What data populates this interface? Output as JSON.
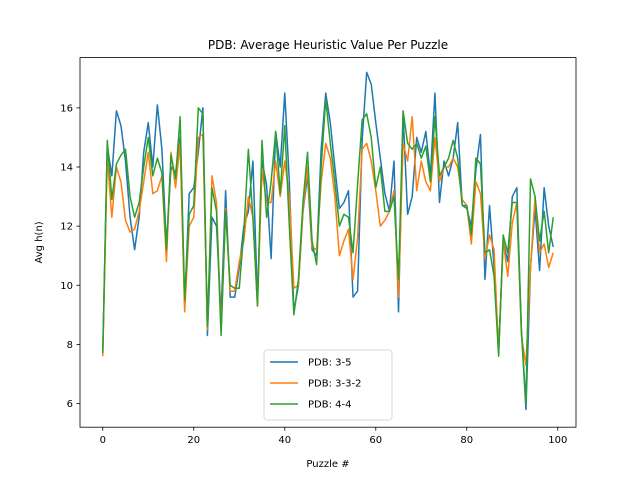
{
  "chart_data": {
    "type": "line",
    "title": "PDB: Average Heuristic Value Per Puzzle",
    "xlabel": "Puzzle #",
    "ylabel": "Avg h(n)",
    "xlim": [
      -5,
      104
    ],
    "ylim": [
      5.2,
      17.7
    ],
    "xticks": [
      0,
      20,
      40,
      60,
      80,
      100
    ],
    "yticks": [
      6,
      8,
      10,
      12,
      14,
      16
    ],
    "grid": false,
    "legend_position": "lower-center",
    "series": [
      {
        "name": "PDB: 3-5",
        "color": "#1f77b4",
        "values": [
          7.7,
          14.7,
          13.7,
          15.9,
          15.4,
          14.2,
          12.3,
          11.2,
          12.3,
          14.5,
          15.5,
          14.0,
          16.1,
          14.6,
          11.3,
          14.0,
          13.8,
          15.0,
          9.3,
          13.1,
          13.3,
          14.5,
          16.0,
          8.3,
          12.3,
          12.0,
          9.0,
          13.2,
          9.6,
          9.6,
          10.6,
          12.0,
          12.5,
          14.2,
          9.5,
          14.2,
          13.4,
          10.9,
          15.2,
          14.0,
          16.5,
          13.5,
          9.1,
          10.0,
          12.5,
          13.7,
          11.2,
          11.0,
          14.6,
          16.5,
          15.5,
          14.0,
          12.6,
          12.8,
          13.2,
          9.6,
          9.8,
          14.9,
          17.2,
          16.8,
          15.5,
          14.3,
          13.1,
          12.5,
          14.2,
          9.1,
          15.8,
          12.4,
          13.0,
          15.0,
          14.5,
          15.2,
          13.7,
          16.5,
          12.8,
          14.2,
          13.7,
          14.3,
          15.5,
          12.7,
          12.6,
          12.0,
          13.9,
          15.1,
          10.2,
          12.7,
          10.6,
          7.8,
          11.5,
          10.8,
          13.0,
          13.3,
          8.5,
          5.8,
          10.6,
          12.6,
          10.5,
          13.3,
          12.0,
          11.3
        ]
      },
      {
        "name": "PDB: 3-3-2",
        "color": "#ff7f0e",
        "values": [
          7.6,
          14.3,
          12.3,
          14.0,
          13.5,
          12.2,
          11.8,
          11.9,
          12.5,
          13.5,
          14.5,
          13.1,
          13.2,
          13.7,
          10.8,
          14.5,
          13.3,
          14.8,
          9.1,
          12.0,
          12.3,
          15.0,
          15.1,
          8.5,
          13.7,
          12.8,
          8.5,
          12.6,
          9.8,
          9.8,
          10.8,
          11.5,
          13.0,
          12.3,
          9.3,
          13.9,
          12.8,
          12.8,
          14.2,
          13.0,
          14.2,
          13.0,
          9.9,
          10.0,
          12.5,
          14.0,
          11.3,
          11.2,
          13.5,
          14.8,
          14.3,
          13.0,
          11.0,
          11.5,
          11.9,
          10.2,
          11.6,
          14.6,
          14.8,
          14.2,
          13.2,
          12.0,
          12.2,
          12.5,
          13.2,
          9.6,
          14.8,
          14.2,
          15.7,
          13.2,
          14.2,
          13.5,
          13.2,
          15.0,
          13.5,
          14.0,
          14.0,
          14.3,
          14.0,
          12.9,
          12.7,
          11.4,
          13.5,
          13.1,
          10.9,
          11.7,
          11.2,
          7.7,
          11.5,
          10.3,
          12.1,
          12.8,
          8.3,
          7.3,
          10.6,
          13.0,
          11.1,
          11.4,
          10.6,
          11.1
        ]
      },
      {
        "name": "PDB: 4-4",
        "color": "#2ca02c",
        "values": [
          7.7,
          14.9,
          12.9,
          14.1,
          14.4,
          14.6,
          13.0,
          12.3,
          12.8,
          14.0,
          15.0,
          13.7,
          14.3,
          13.8,
          11.2,
          14.4,
          13.6,
          15.7,
          9.5,
          12.4,
          12.7,
          16.0,
          15.8,
          8.6,
          13.3,
          12.5,
          8.3,
          12.5,
          10.0,
          9.9,
          9.9,
          11.8,
          14.6,
          12.3,
          9.3,
          14.9,
          12.3,
          13.5,
          15.2,
          13.1,
          15.4,
          12.0,
          9.0,
          10.2,
          12.8,
          14.5,
          11.5,
          10.7,
          14.0,
          16.3,
          14.8,
          13.5,
          12.0,
          12.4,
          12.3,
          11.1,
          13.4,
          15.6,
          15.8,
          15.0,
          13.3,
          14.0,
          12.5,
          12.5,
          13.0,
          10.2,
          15.9,
          14.8,
          14.6,
          14.8,
          14.3,
          14.7,
          13.5,
          15.7,
          13.7,
          14.0,
          14.3,
          14.9,
          14.3,
          12.7,
          12.7,
          11.7,
          14.3,
          14.1,
          11.1,
          11.2,
          10.3,
          7.6,
          11.7,
          11.1,
          12.8,
          12.8,
          8.5,
          6.0,
          13.6,
          13.0,
          11.5,
          12.5,
          11.1,
          12.3
        ]
      }
    ]
  }
}
